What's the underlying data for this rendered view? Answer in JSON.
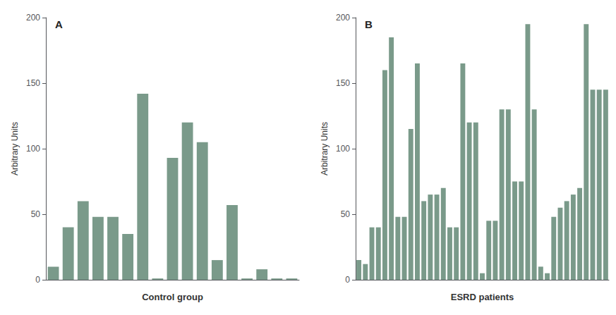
{
  "chart_data": [
    {
      "type": "bar",
      "annotation": "A",
      "xlabel": "Control group",
      "ylabel": "Arbitrary Units",
      "categories": [
        null,
        null,
        null,
        null,
        null,
        null,
        null,
        null,
        null,
        null,
        null,
        null,
        null,
        null,
        null,
        null,
        null
      ],
      "values": [
        10,
        40,
        60,
        48,
        48,
        35,
        142,
        1,
        93,
        120,
        105,
        15,
        57,
        1,
        8,
        1,
        1
      ],
      "color": "#7a9a8a",
      "ylim": [
        0,
        200
      ],
      "yticks": [
        0,
        50,
        100,
        150,
        200
      ],
      "grid": false,
      "tick_labels": "y"
    },
    {
      "type": "bar",
      "annotation": "B",
      "xlabel": "ESRD patients",
      "ylabel": "Arbitrary Units",
      "categories": [
        null,
        null,
        null,
        null,
        null,
        null,
        null,
        null,
        null,
        null,
        null,
        null,
        null,
        null,
        null,
        null,
        null,
        null,
        null,
        null,
        null,
        null,
        null,
        null,
        null,
        null,
        null,
        null,
        null,
        null,
        null,
        null,
        null,
        null,
        null,
        null,
        null,
        null,
        null
      ],
      "values": [
        15,
        12,
        40,
        40,
        160,
        185,
        48,
        48,
        115,
        165,
        60,
        65,
        65,
        70,
        40,
        40,
        165,
        120,
        120,
        5,
        45,
        45,
        130,
        130,
        75,
        75,
        195,
        130,
        10,
        5,
        48,
        55,
        60,
        65,
        70,
        195,
        145,
        145,
        145
      ],
      "color": "#7a9a8a",
      "ylim": [
        0,
        200
      ],
      "yticks": [
        0,
        50,
        100,
        150,
        200
      ],
      "grid": false,
      "tick_labels": "y"
    }
  ]
}
